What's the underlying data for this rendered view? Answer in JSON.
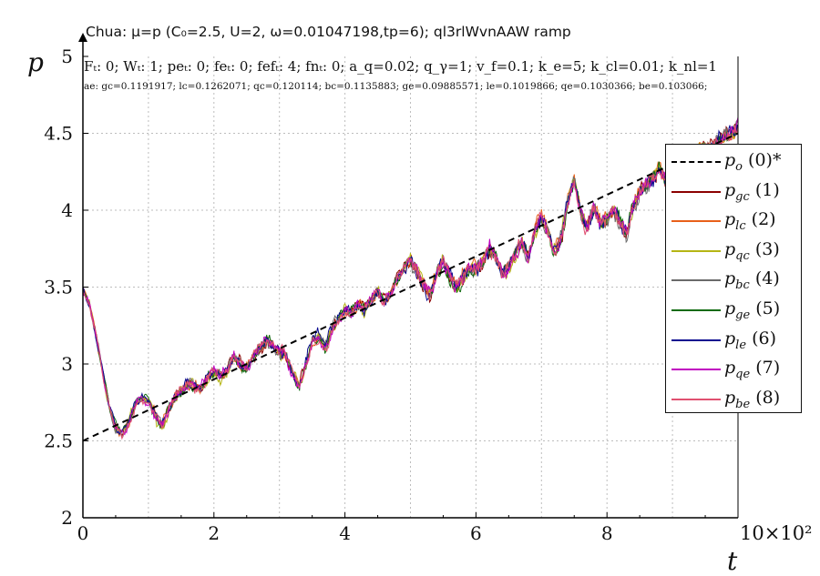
{
  "title": "Chua: μ=p (C₀=2.5, U=2, ω=0.01047198,tp=6); ql3rlWvnAAW ramp",
  "params_text": "Fₜ: 0; Wₜ: 1; peₜ: 0; feₜ: 0; fefₜ: 4; fnₜ: 0; a_q=0.02; q_γ=1; v_f=0.1; k_e=5; k_cl=0.01; k_nl=1",
  "errors_text": "ae: gc=0.1191917; lc=0.1262071; qc=0.120114; bc=0.1135883; ge=0.09885571; le=0.1019866; qe=0.1030366; be=0.103066;",
  "chart_data": {
    "type": "line",
    "title": "Chua: μ=p (C₀=2.5, U=2, ω=0.01047198,tp=6); ql3rlWvnAAW ramp",
    "xlabel": "t",
    "ylabel": "p",
    "x_multiplier": "×10²",
    "xlim": [
      0,
      10
    ],
    "ylim": [
      2,
      5
    ],
    "xticks": [
      0,
      2,
      4,
      6,
      8,
      10
    ],
    "xtick_labels": [
      "0",
      "2",
      "4",
      "6",
      "8",
      "10"
    ],
    "yticks": [
      2,
      2.5,
      3,
      3.5,
      4,
      4.5,
      5
    ],
    "ytick_labels": [
      "2",
      "2.5",
      "3",
      "3.5",
      "4",
      "4.5",
      "5"
    ],
    "grid": true,
    "legend_position": "right",
    "reference": {
      "name": "p_o (0)*",
      "style": "dashed",
      "color": "#000000",
      "x": [
        0,
        10
      ],
      "y": [
        2.5,
        4.5
      ]
    },
    "base_curve": {
      "x": [
        0,
        0.1,
        0.2,
        0.3,
        0.4,
        0.5,
        0.6,
        0.7,
        0.8,
        0.9,
        1.0,
        1.1,
        1.2,
        1.3,
        1.4,
        1.5,
        1.6,
        1.7,
        1.8,
        1.9,
        2.0,
        2.1,
        2.2,
        2.3,
        2.4,
        2.5,
        2.6,
        2.7,
        2.8,
        2.9,
        3.0,
        3.1,
        3.2,
        3.3,
        3.4,
        3.5,
        3.6,
        3.7,
        3.8,
        3.9,
        4.0,
        4.1,
        4.2,
        4.3,
        4.4,
        4.5,
        4.6,
        4.7,
        4.8,
        4.9,
        5.0,
        5.1,
        5.2,
        5.3,
        5.4,
        5.5,
        5.6,
        5.7,
        5.8,
        5.9,
        6.0,
        6.1,
        6.2,
        6.3,
        6.4,
        6.5,
        6.6,
        6.7,
        6.8,
        6.9,
        7.0,
        7.1,
        7.2,
        7.3,
        7.4,
        7.5,
        7.6,
        7.7,
        7.8,
        7.9,
        8.0,
        8.1,
        8.2,
        8.3,
        8.4,
        8.5,
        8.6,
        8.7,
        8.8,
        8.9,
        9.0,
        9.1,
        9.2,
        9.3,
        9.4,
        9.5,
        9.6,
        9.7,
        9.8,
        9.9,
        10.0
      ],
      "y": [
        3.48,
        3.38,
        3.18,
        2.95,
        2.72,
        2.58,
        2.55,
        2.62,
        2.74,
        2.78,
        2.76,
        2.68,
        2.6,
        2.7,
        2.78,
        2.83,
        2.87,
        2.86,
        2.83,
        2.9,
        2.95,
        2.92,
        2.96,
        3.05,
        3.0,
        2.98,
        3.05,
        3.1,
        3.15,
        3.12,
        3.08,
        3.05,
        2.95,
        2.85,
        3.0,
        3.15,
        3.18,
        3.1,
        3.22,
        3.3,
        3.35,
        3.33,
        3.38,
        3.35,
        3.42,
        3.48,
        3.4,
        3.45,
        3.55,
        3.62,
        3.68,
        3.6,
        3.52,
        3.45,
        3.6,
        3.68,
        3.58,
        3.5,
        3.56,
        3.62,
        3.62,
        3.66,
        3.75,
        3.7,
        3.58,
        3.62,
        3.72,
        3.8,
        3.7,
        3.88,
        3.95,
        3.85,
        3.72,
        3.82,
        4.05,
        4.2,
        3.98,
        3.88,
        4.02,
        3.92,
        3.95,
        4.0,
        3.92,
        3.85,
        4.02,
        4.12,
        4.18,
        4.22,
        4.28,
        4.2,
        4.25,
        4.3,
        4.22,
        4.35,
        4.38,
        4.42,
        4.4,
        4.45,
        4.48,
        4.5,
        4.55
      ]
    },
    "series": [
      {
        "name": "p_gc (1)",
        "color": "#8b0000"
      },
      {
        "name": "p_lc (2)",
        "color": "#e8601a"
      },
      {
        "name": "p_qc (3)",
        "color": "#b5b515"
      },
      {
        "name": "p_bc (4)",
        "color": "#6a6a6a"
      },
      {
        "name": "p_ge (5)",
        "color": "#0f6b0f"
      },
      {
        "name": "p_le (6)",
        "color": "#0a0a90"
      },
      {
        "name": "p_qe (7)",
        "color": "#c000c0"
      },
      {
        "name": "p_be (8)",
        "color": "#e05070"
      }
    ]
  },
  "legend": [
    {
      "sym": "p",
      "sub": "o",
      "num": "(0)*",
      "color": "#000000",
      "dashed": true
    },
    {
      "sym": "p",
      "sub": "gc",
      "num": "(1)",
      "color": "#8b0000",
      "dashed": false
    },
    {
      "sym": "p",
      "sub": "lc",
      "num": "(2)",
      "color": "#e8601a",
      "dashed": false
    },
    {
      "sym": "p",
      "sub": "qc",
      "num": "(3)",
      "color": "#b5b515",
      "dashed": false
    },
    {
      "sym": "p",
      "sub": "bc",
      "num": "(4)",
      "color": "#6a6a6a",
      "dashed": false
    },
    {
      "sym": "p",
      "sub": "ge",
      "num": "(5)",
      "color": "#0f6b0f",
      "dashed": false
    },
    {
      "sym": "p",
      "sub": "le",
      "num": "(6)",
      "color": "#0a0a90",
      "dashed": false
    },
    {
      "sym": "p",
      "sub": "qe",
      "num": "(7)",
      "color": "#c000c0",
      "dashed": false
    },
    {
      "sym": "p",
      "sub": "be",
      "num": "(8)",
      "color": "#e05070",
      "dashed": false
    }
  ]
}
